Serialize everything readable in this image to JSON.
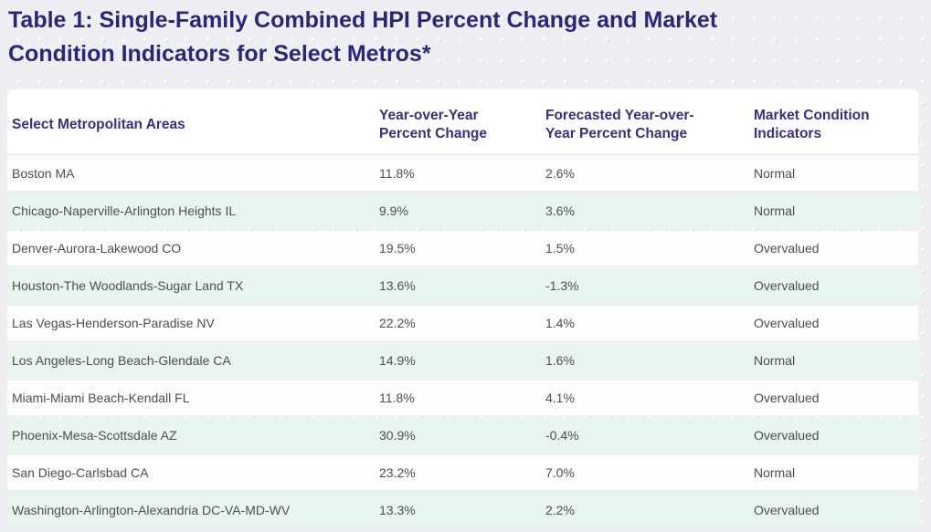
{
  "page": {
    "title": "Table 1: Single-Family Combined HPI Percent Change and Market Condition Indicators for Select Metros*"
  },
  "colors": {
    "page_background": "#edeff3",
    "title_navy": "#2d2678",
    "header_navy": "#36307f",
    "body_text": "#4e4e4e",
    "row_white": "#fcfdfd",
    "row_mint": "#e7f5ee"
  },
  "table": {
    "columns": [
      {
        "label": "Select Metropolitan Areas"
      },
      {
        "label": "Year-over-Year Percent Change"
      },
      {
        "label": "Forecasted Year-over-Year Percent Change"
      },
      {
        "label": "Market Condition Indicators"
      }
    ],
    "rows": [
      {
        "area": "Boston MA",
        "yoy": "11.8%",
        "forecast": "2.6%",
        "indicator": "Normal"
      },
      {
        "area": "Chicago-Naperville-Arlington Heights IL",
        "yoy": "9.9%",
        "forecast": "3.6%",
        "indicator": "Normal"
      },
      {
        "area": "Denver-Aurora-Lakewood CO",
        "yoy": "19.5%",
        "forecast": "1.5%",
        "indicator": "Overvalued"
      },
      {
        "area": "Houston-The Woodlands-Sugar Land TX",
        "yoy": "13.6%",
        "forecast": "-1.3%",
        "indicator": "Overvalued"
      },
      {
        "area": "Las Vegas-Henderson-Paradise NV",
        "yoy": "22.2%",
        "forecast": "1.4%",
        "indicator": "Overvalued"
      },
      {
        "area": "Los Angeles-Long Beach-Glendale CA",
        "yoy": "14.9%",
        "forecast": "1.6%",
        "indicator": "Normal"
      },
      {
        "area": "Miami-Miami Beach-Kendall FL",
        "yoy": "11.8%",
        "forecast": "4.1%",
        "indicator": "Overvalued"
      },
      {
        "area": "Phoenix-Mesa-Scottsdale AZ",
        "yoy": "30.9%",
        "forecast": "-0.4%",
        "indicator": "Overvalued"
      },
      {
        "area": "San Diego-Carlsbad CA",
        "yoy": "23.2%",
        "forecast": "7.0%",
        "indicator": "Normal"
      },
      {
        "area": "Washington-Arlington-Alexandria DC-VA-MD-WV",
        "yoy": "13.3%",
        "forecast": "2.2%",
        "indicator": "Overvalued"
      }
    ]
  },
  "chart_data": {
    "type": "table",
    "title": "Table 1: Single-Family Combined HPI Percent Change and Market Condition Indicators for Select Metros*",
    "columns": [
      "Select Metropolitan Areas",
      "Year-over-Year Percent Change",
      "Forecasted Year-over-Year Percent Change",
      "Market Condition Indicators"
    ],
    "rows": [
      [
        "Boston MA",
        "11.8%",
        "2.6%",
        "Normal"
      ],
      [
        "Chicago-Naperville-Arlington Heights IL",
        "9.9%",
        "3.6%",
        "Normal"
      ],
      [
        "Denver-Aurora-Lakewood CO",
        "19.5%",
        "1.5%",
        "Overvalued"
      ],
      [
        "Houston-The Woodlands-Sugar Land TX",
        "13.6%",
        "-1.3%",
        "Overvalued"
      ],
      [
        "Las Vegas-Henderson-Paradise NV",
        "22.2%",
        "1.4%",
        "Overvalued"
      ],
      [
        "Los Angeles-Long Beach-Glendale CA",
        "14.9%",
        "1.6%",
        "Normal"
      ],
      [
        "Miami-Miami Beach-Kendall FL",
        "11.8%",
        "4.1%",
        "Overvalued"
      ],
      [
        "Phoenix-Mesa-Scottsdale AZ",
        "30.9%",
        "-0.4%",
        "Overvalued"
      ],
      [
        "San Diego-Carlsbad CA",
        "23.2%",
        "7.0%",
        "Normal"
      ],
      [
        "Washington-Arlington-Alexandria DC-VA-MD-WV",
        "13.3%",
        "2.2%",
        "Overvalued"
      ]
    ]
  }
}
